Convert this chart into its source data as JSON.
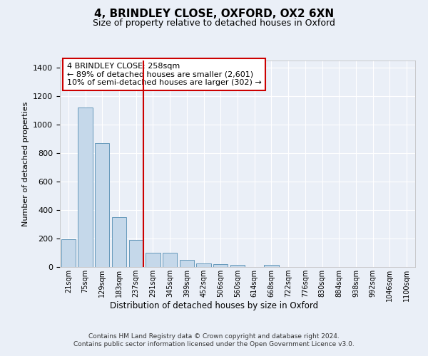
{
  "title": "4, BRINDLEY CLOSE, OXFORD, OX2 6XN",
  "subtitle": "Size of property relative to detached houses in Oxford",
  "xlabel": "Distribution of detached houses by size in Oxford",
  "ylabel": "Number of detached properties",
  "bin_labels": [
    "21sqm",
    "75sqm",
    "129sqm",
    "183sqm",
    "237sqm",
    "291sqm",
    "345sqm",
    "399sqm",
    "452sqm",
    "506sqm",
    "560sqm",
    "614sqm",
    "668sqm",
    "722sqm",
    "776sqm",
    "830sqm",
    "884sqm",
    "938sqm",
    "992sqm",
    "1046sqm",
    "1100sqm"
  ],
  "bar_heights": [
    193,
    1120,
    870,
    350,
    190,
    100,
    100,
    50,
    25,
    18,
    15,
    0,
    15,
    0,
    0,
    0,
    0,
    0,
    0,
    0,
    0
  ],
  "bar_color": "#c5d8ea",
  "bar_edge_color": "#6699bb",
  "vline_x_idx": 4.42,
  "vline_color": "#cc0000",
  "annotation_text": "4 BRINDLEY CLOSE: 258sqm\n← 89% of detached houses are smaller (2,601)\n10% of semi-detached houses are larger (302) →",
  "annotation_box_color": "#cc0000",
  "ylim": [
    0,
    1450
  ],
  "yticks": [
    0,
    200,
    400,
    600,
    800,
    1000,
    1200,
    1400
  ],
  "bg_color": "#eaeff7",
  "plot_bg_color": "#eaeff7",
  "footer": "Contains HM Land Registry data © Crown copyright and database right 2024.\nContains public sector information licensed under the Open Government Licence v3.0.",
  "title_fontsize": 11,
  "subtitle_fontsize": 9,
  "annotation_fontsize": 8,
  "grid_color": "#ffffff",
  "spine_color": "#bbbbbb"
}
